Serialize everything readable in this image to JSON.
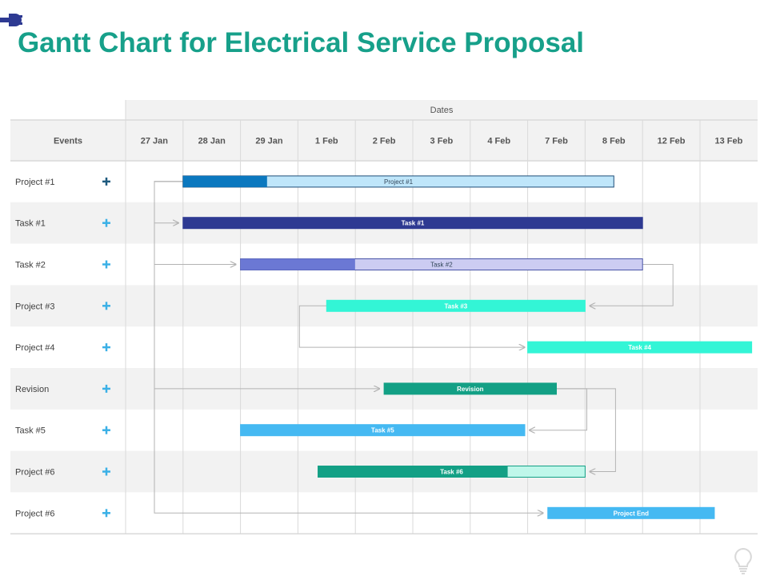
{
  "title": "Gantt Chart for Electrical Service Proposal",
  "header": {
    "dates_label": "Dates",
    "events_label": "Events"
  },
  "icons": {
    "top_left": "plug-icon",
    "row_marker": "plus-icon",
    "bottom_right": "lightbulb-icon"
  },
  "colors": {
    "title": "#17a08a",
    "plus_dark": "#1e5a7e",
    "plus_light": "#3bb0e6",
    "grid": "#d9d9d9",
    "band": "#f2f2f2",
    "connector": "#b3b3b3"
  },
  "chart_data": {
    "type": "gantt",
    "title": "Gantt Chart for Electrical Service Proposal",
    "x_axis_label": "Dates",
    "y_axis_label": "Events",
    "dates": [
      "27 Jan",
      "28 Jan",
      "29 Jan",
      "1 Feb",
      "2 Feb",
      "3 Feb",
      "4 Feb",
      "7 Feb",
      "8 Feb",
      "12 Feb",
      "13 Feb"
    ],
    "rows": [
      "Project #1",
      "Task #1",
      "Task #2",
      "Project #3",
      "Project #4",
      "Revision",
      "Task #5",
      "Project #6",
      "Project #6"
    ],
    "tasks": [
      {
        "row": 0,
        "label": "Project #1",
        "start": 1.0,
        "end": 8.5,
        "progress": 0.195,
        "color": "#bfe6fa",
        "progress_color": "#0b78bf",
        "border": "#1f4e79",
        "label_color": "#33475b",
        "label_weight": "normal"
      },
      {
        "row": 1,
        "label": "Task #1",
        "start": 1.0,
        "end": 9.0,
        "progress": 1.0,
        "color": "#2e3a92",
        "progress_color": "#2e3a92",
        "border": "#2e3a92",
        "label_color": "#ffffff",
        "label_weight": "bold"
      },
      {
        "row": 2,
        "label": "Task #2",
        "start": 2.0,
        "end": 9.0,
        "progress": 0.285,
        "color": "#ccccf2",
        "progress_color": "#6b78d4",
        "border": "#4a55a8",
        "label_color": "#33475b",
        "label_weight": "normal"
      },
      {
        "row": 3,
        "label": "Task #3",
        "start": 3.5,
        "end": 8.0,
        "progress": 1.0,
        "color": "#33f5d6",
        "progress_color": "#33f5d6",
        "border": "#33f5d6",
        "label_color": "#ffffff",
        "label_weight": "bold"
      },
      {
        "row": 4,
        "label": "Task #4",
        "start": 7.0,
        "end": 10.9,
        "progress": 1.0,
        "color": "#33f5d6",
        "progress_color": "#33f5d6",
        "border": "#33f5d6",
        "label_color": "#ffffff",
        "label_weight": "bold"
      },
      {
        "row": 5,
        "label": "Revision",
        "start": 4.5,
        "end": 7.5,
        "progress": 1.0,
        "color": "#13a085",
        "progress_color": "#13a085",
        "border": "#13a085",
        "label_color": "#ffffff",
        "label_weight": "bold"
      },
      {
        "row": 6,
        "label": "Task #5",
        "start": 2.0,
        "end": 6.95,
        "progress": 1.0,
        "color": "#45b9f2",
        "progress_color": "#45b9f2",
        "border": "#45b9f2",
        "label_color": "#ffffff",
        "label_weight": "bold"
      },
      {
        "row": 7,
        "label": "Task #6",
        "start": 3.35,
        "end": 8.0,
        "progress": 0.71,
        "color": "#bff7ea",
        "progress_color": "#13a085",
        "border": "#13a085",
        "label_color": "#ffffff",
        "label_weight": "bold"
      },
      {
        "row": 8,
        "label": "Project End",
        "start": 7.35,
        "end": 10.25,
        "progress": 1.0,
        "color": "#45b9f2",
        "progress_color": "#45b9f2",
        "border": "#45b9f2",
        "label_color": "#ffffff",
        "label_weight": "bold"
      }
    ],
    "dependencies": [
      {
        "from": 0,
        "to": 1
      },
      {
        "from": 0,
        "to": 2
      },
      {
        "from": 0,
        "to": 5
      },
      {
        "from": 0,
        "to": 8
      },
      {
        "from": 2,
        "to": 3
      },
      {
        "from": 3,
        "to": 4
      },
      {
        "from": 5,
        "to": 6
      },
      {
        "from": 5,
        "to": 7
      }
    ],
    "grid": true,
    "alternating_row_bands": true
  }
}
